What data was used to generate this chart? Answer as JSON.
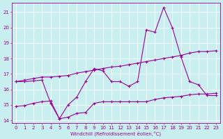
{
  "xlabel": "Windchill (Refroidissement éolien,°C)",
  "bg_color": "#c8eef0",
  "line_color": "#990099",
  "grid_color": "#ffffff",
  "xlim": [
    -0.5,
    23.5
  ],
  "ylim": [
    13.8,
    21.6
  ],
  "yticks": [
    14,
    15,
    16,
    17,
    18,
    19,
    20,
    21
  ],
  "xticks": [
    0,
    1,
    2,
    3,
    4,
    5,
    6,
    7,
    8,
    9,
    10,
    11,
    12,
    13,
    14,
    15,
    16,
    17,
    18,
    19,
    20,
    21,
    22,
    23
  ],
  "line1_x": [
    0,
    1,
    2,
    3,
    4,
    5,
    6,
    7,
    8,
    9,
    10,
    11,
    12,
    13,
    14,
    15,
    16,
    17,
    18,
    19,
    20,
    21,
    22,
    23
  ],
  "line1_y": [
    16.5,
    16.6,
    16.7,
    16.8,
    16.8,
    16.85,
    16.9,
    17.05,
    17.15,
    17.25,
    17.35,
    17.45,
    17.5,
    17.6,
    17.7,
    17.8,
    17.9,
    18.0,
    18.1,
    18.2,
    18.35,
    18.45,
    18.45,
    18.5
  ],
  "line2_x": [
    0,
    1,
    2,
    3,
    4,
    5,
    6,
    7,
    8,
    9,
    10,
    11,
    12,
    13,
    14,
    15,
    16,
    17,
    18,
    19,
    20,
    21,
    22,
    23
  ],
  "line2_y": [
    14.9,
    14.95,
    15.1,
    15.2,
    15.25,
    14.1,
    15.0,
    15.5,
    16.5,
    17.35,
    17.2,
    16.5,
    16.5,
    16.2,
    16.5,
    19.85,
    19.7,
    21.3,
    20.0,
    18.1,
    16.5,
    16.3,
    15.6,
    15.6
  ],
  "line3_x": [
    0,
    1,
    2,
    3,
    4,
    5,
    6,
    7,
    8,
    9,
    10,
    11,
    12,
    13,
    14,
    15,
    16,
    17,
    18,
    19,
    20,
    21,
    22,
    23
  ],
  "line3_y": [
    16.5,
    16.5,
    16.55,
    16.6,
    15.1,
    14.1,
    14.2,
    14.45,
    14.5,
    15.1,
    15.2,
    15.2,
    15.2,
    15.2,
    15.2,
    15.2,
    15.35,
    15.45,
    15.5,
    15.55,
    15.65,
    15.7,
    15.7,
    15.75
  ]
}
